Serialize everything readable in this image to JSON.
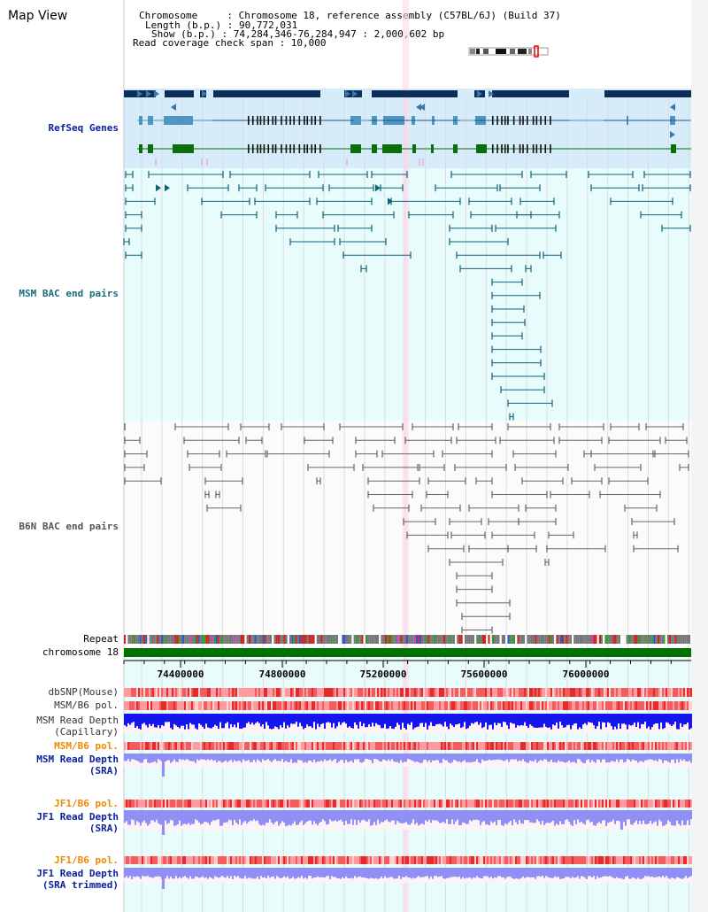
{
  "page": {
    "title": "Map View"
  },
  "header": {
    "chromosome": "Chromosome     : Chromosome 18, reference assembly (C57BL/6J) (Build 37)",
    "length": "Length (b.p.) : 90,772,031",
    "show": "Show (b.p.) : 74,284,346-76,284,947 : 2,000,602 bp",
    "coverage": "Read coverage check span : 10,000"
  },
  "tracks": {
    "refseq": "RefSeq Genes",
    "msm_bac": "MSM BAC end pairs",
    "b6n_bac": "B6N BAC end pairs",
    "repeat": "Repeat",
    "chromosome": "chromosome 18",
    "dbsnp": "dbSNP(Mouse)",
    "msm_b6_pol_1": "MSM/B6 pol.",
    "msm_depth_cap": "MSM Read Depth\n(Capillary)",
    "msm_b6_pol_2": "MSM/B6 pol.",
    "msm_depth_sra": "MSM Read Depth\n(SRA)",
    "jf1_b6_pol_1": "JF1/B6 pol.",
    "jf1_depth_sra": "JF1 Read Depth\n(SRA)",
    "jf1_b6_pol_2": "JF1/B6 pol.",
    "jf1_depth_trim": "JF1 Read Depth\n(SRA trimmed)"
  },
  "axis": {
    "ticks": [
      "74400000",
      "74800000",
      "75200000",
      "75600000",
      "76000000"
    ]
  },
  "colors": {
    "refseq_bg": "#d6ecfa",
    "panel_bg": "#e8fcfc",
    "gene_navy": "#0b2f5a",
    "gene_blue": "#4e95c2",
    "gene_green": "#0a6e0a",
    "msm_bac": "#11607a",
    "b6n_bac": "#555555",
    "chrom_green": "#007000",
    "depth_blue": "#1515ee",
    "depth_light": "#8f8ff5",
    "label_navy": "#0a1e9e",
    "label_teal": "#1b6b7d",
    "label_orange": "#ee8800"
  }
}
